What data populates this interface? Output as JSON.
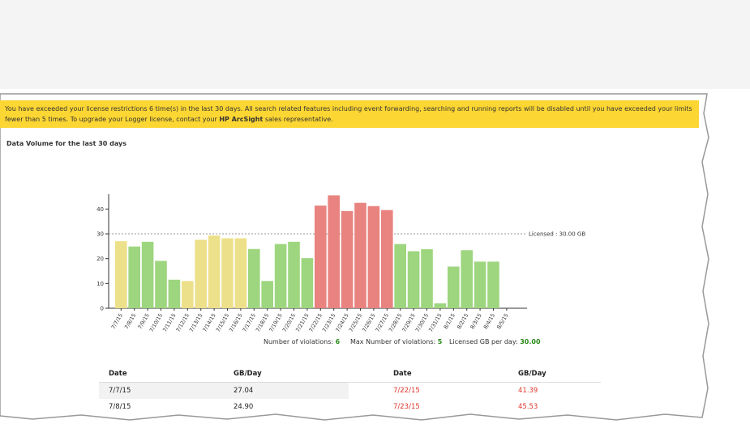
{
  "banner": {
    "text_before": "You have exceeded your license restrictions 6 time(s) in the last 30 days. All search related features including event forwarding, searching and running reports will be disabled until you have exceeded your limits fewer than 5 times. To upgrade your Logger license, contact your ",
    "bold": "HP ArcSight",
    "text_after": " sales representative."
  },
  "chart_data": {
    "type": "bar",
    "title": "Data Volume for the last 30 days",
    "categories": [
      "7/7/15",
      "7/8/15",
      "7/9/15",
      "7/10/15",
      "7/11/15",
      "7/12/15",
      "7/13/15",
      "7/14/15",
      "7/15/15",
      "7/16/15",
      "7/17/15",
      "7/18/15",
      "7/19/15",
      "7/20/15",
      "7/21/15",
      "7/22/15",
      "7/23/15",
      "7/24/15",
      "7/25/15",
      "7/26/15",
      "7/27/15",
      "7/28/15",
      "7/29/15",
      "7/30/15",
      "7/31/15",
      "8/1/15",
      "8/2/15",
      "8/3/15",
      "8/4/15",
      "8/5/15"
    ],
    "values": [
      27.04,
      24.9,
      26.8,
      19.1,
      11.5,
      11.0,
      27.6,
      29.3,
      28.2,
      28.2,
      23.9,
      11.0,
      25.9,
      26.8,
      20.2,
      41.39,
      45.53,
      39.2,
      42.5,
      41.2,
      39.6,
      25.9,
      23.0,
      23.8,
      2.0,
      16.8,
      23.4,
      18.8,
      18.8,
      null
    ],
    "colors": [
      "#ede08a",
      "#9ed67f",
      "#9ed67f",
      "#9ed67f",
      "#9ed67f",
      "#ede08a",
      "#ede08a",
      "#ede08a",
      "#ede08a",
      "#ede08a",
      "#9ed67f",
      "#9ed67f",
      "#9ed67f",
      "#9ed67f",
      "#9ed67f",
      "#e8837f",
      "#e8837f",
      "#e8837f",
      "#e8837f",
      "#e8837f",
      "#e8837f",
      "#9ed67f",
      "#9ed67f",
      "#9ed67f",
      "#9ed67f",
      "#9ed67f",
      "#9ed67f",
      "#9ed67f",
      "#9ed67f",
      "#9ed67f"
    ],
    "ylim": [
      0,
      46
    ],
    "yticks": [
      0,
      10,
      20,
      30,
      40
    ],
    "threshold": 30,
    "threshold_label": "Licensed : 30.00 GB"
  },
  "stats": [
    {
      "label": "Number of violations:",
      "value": "6"
    },
    {
      "label": "Max Number of violations:",
      "value": "5"
    },
    {
      "label": "Licensed GB per day:",
      "value": "30.00"
    }
  ],
  "table": {
    "columns": [
      "Date",
      "GB/Day",
      "Date",
      "GB/Day"
    ],
    "rows": [
      [
        "7/7/15",
        "27.04",
        "7/22/15",
        "41.39"
      ],
      [
        "7/8/15",
        "24.90",
        "7/23/15",
        "45.53"
      ]
    ]
  }
}
